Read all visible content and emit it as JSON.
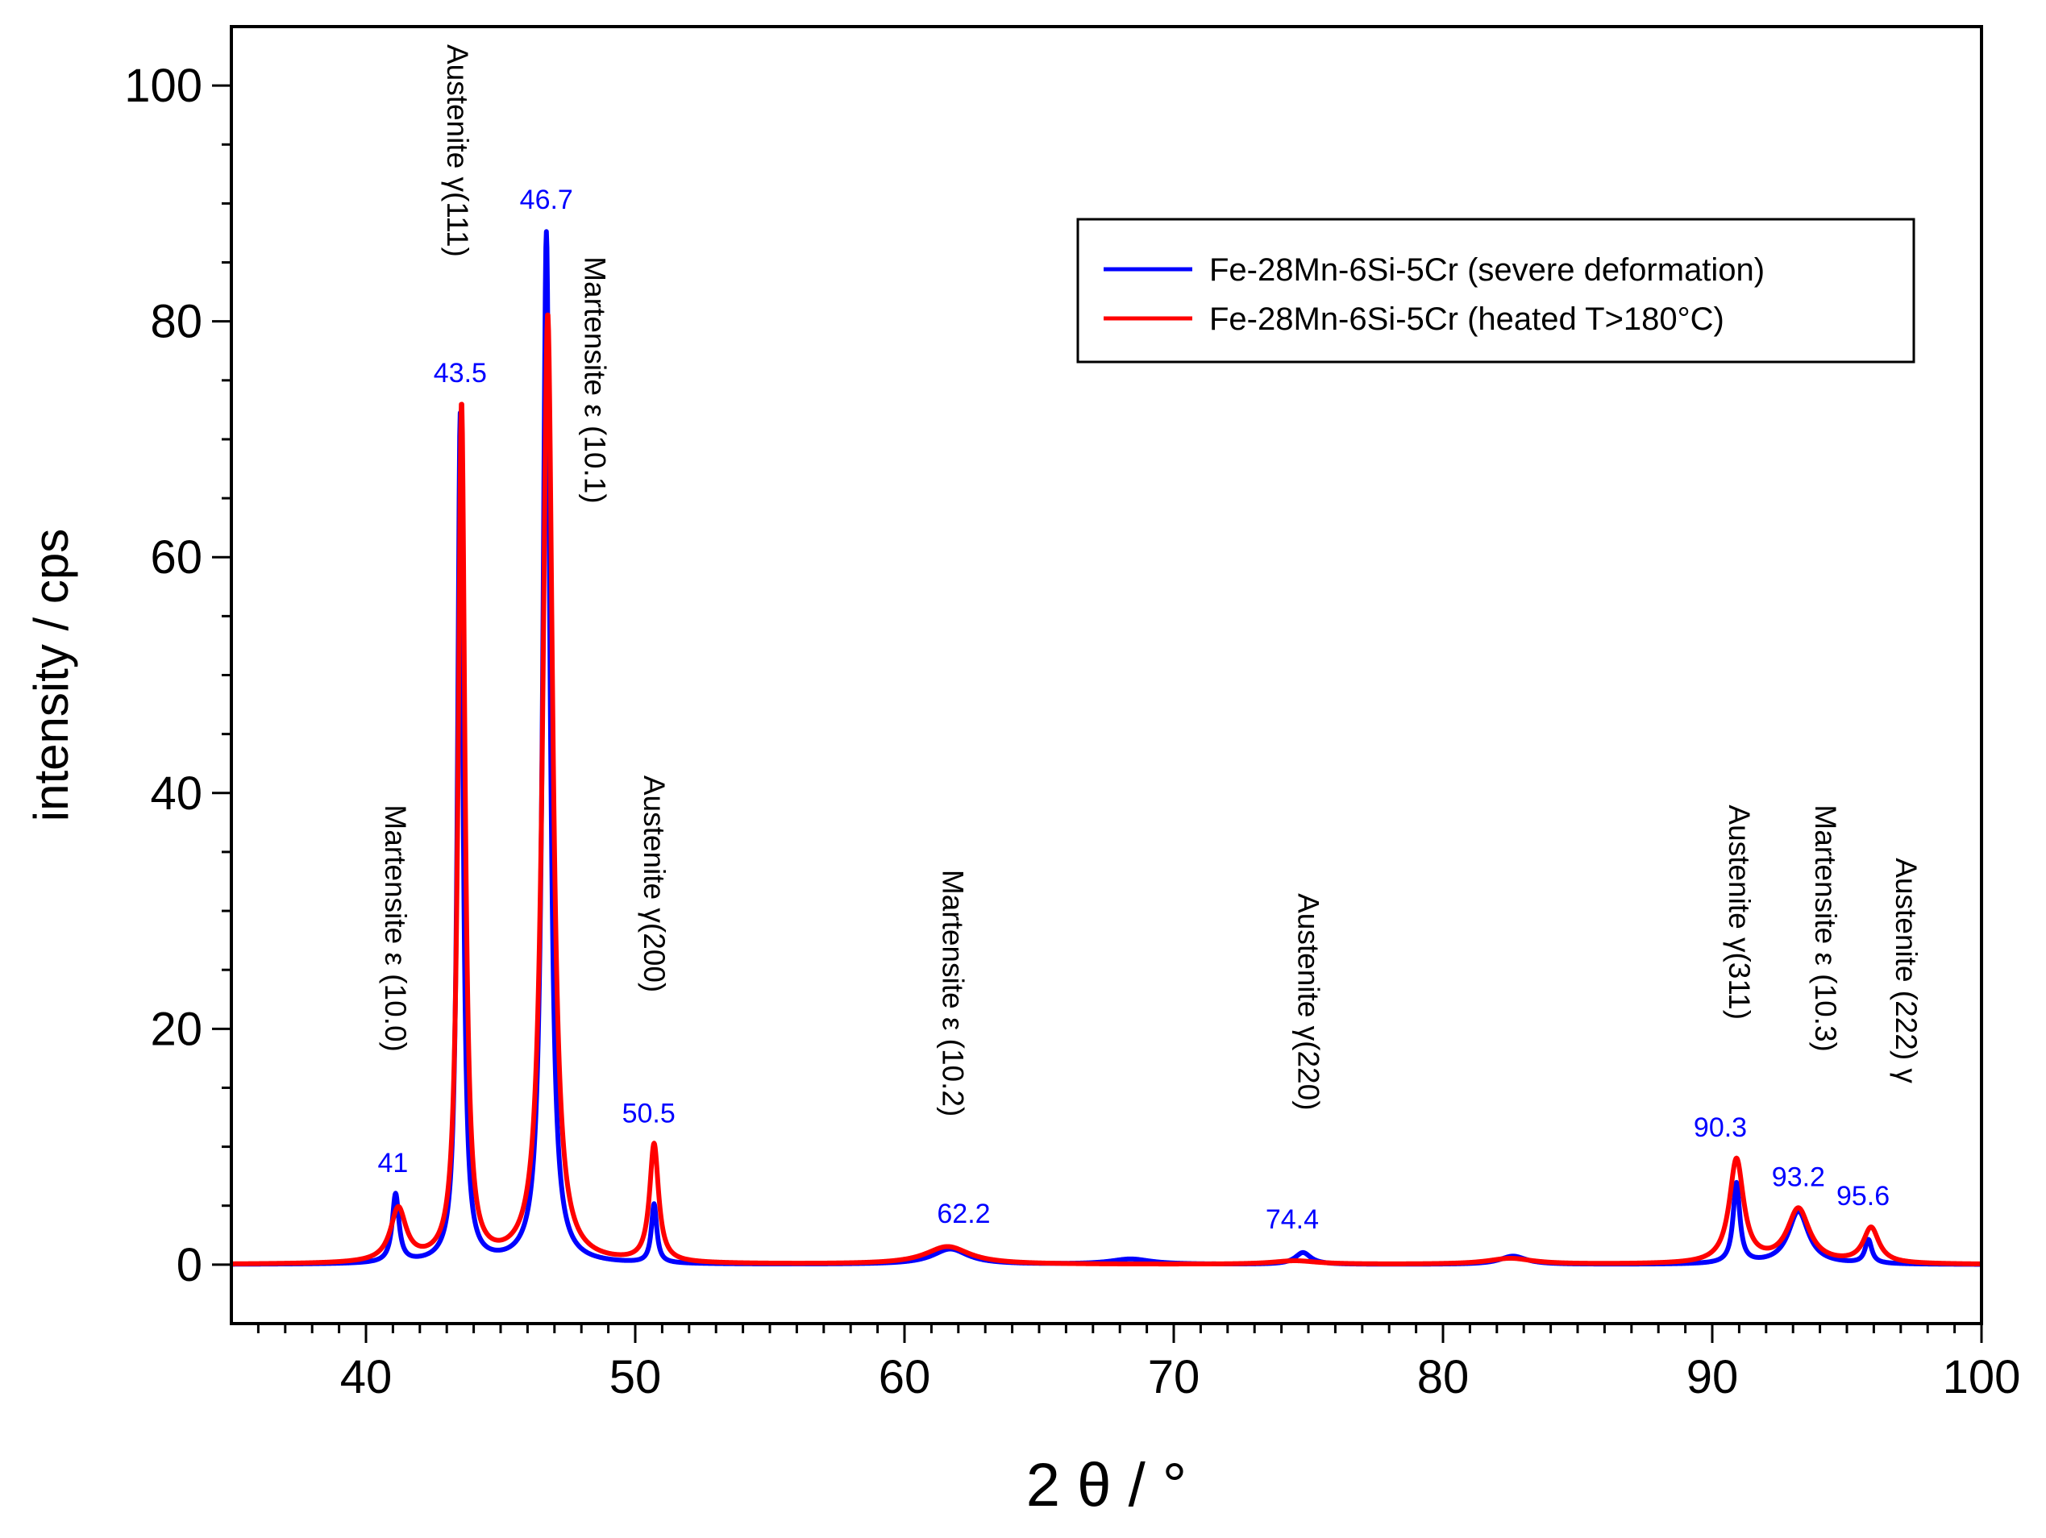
{
  "chart_data": {
    "type": "line",
    "title": "",
    "xlabel": "2 θ / °",
    "ylabel": "intensity / cps",
    "xlim": [
      35,
      100
    ],
    "ylim": [
      -5,
      105
    ],
    "x_ticks": [
      40,
      50,
      60,
      70,
      80,
      90,
      100
    ],
    "y_ticks": [
      0,
      20,
      40,
      60,
      80,
      100
    ],
    "grid": false,
    "legend_position": "top-right",
    "series": [
      {
        "name": "Fe-28Mn-6Si-5Cr (severe deformation)",
        "color": "#0000ff",
        "baseline": 0,
        "peaks": [
          {
            "center": 41.1,
            "height": 5.8,
            "width": 0.15
          },
          {
            "center": 43.5,
            "height": 72.0,
            "width": 0.12
          },
          {
            "center": 46.7,
            "height": 87.5,
            "width": 0.16
          },
          {
            "center": 50.7,
            "height": 5.0,
            "width": 0.12
          },
          {
            "center": 61.7,
            "height": 1.3,
            "width": 0.8
          },
          {
            "center": 68.4,
            "height": 0.45,
            "width": 0.9
          },
          {
            "center": 74.8,
            "height": 1.0,
            "width": 0.35
          },
          {
            "center": 82.6,
            "height": 0.7,
            "width": 0.6
          },
          {
            "center": 90.9,
            "height": 6.8,
            "width": 0.15
          },
          {
            "center": 93.2,
            "height": 4.5,
            "width": 0.45
          },
          {
            "center": 95.8,
            "height": 2.0,
            "width": 0.15
          }
        ]
      },
      {
        "name": "Fe-28Mn-6Si-5Cr (heated T>180°C)",
        "color": "#ff0000",
        "baseline": 0,
        "peaks": [
          {
            "center": 41.2,
            "height": 4.5,
            "width": 0.35
          },
          {
            "center": 43.55,
            "height": 72.8,
            "width": 0.15
          },
          {
            "center": 46.75,
            "height": 80.5,
            "width": 0.22
          },
          {
            "center": 50.7,
            "height": 10.0,
            "width": 0.2
          },
          {
            "center": 61.6,
            "height": 1.5,
            "width": 1.0
          },
          {
            "center": 74.5,
            "height": 0.3,
            "width": 1.0
          },
          {
            "center": 82.5,
            "height": 0.5,
            "width": 1.0
          },
          {
            "center": 90.9,
            "height": 8.8,
            "width": 0.32
          },
          {
            "center": 93.2,
            "height": 4.6,
            "width": 0.5
          },
          {
            "center": 95.9,
            "height": 3.0,
            "width": 0.35
          }
        ]
      }
    ],
    "peak_labels": [
      {
        "x": 41.0,
        "y": 5.8,
        "text": "41"
      },
      {
        "x": 43.5,
        "y": 72.8,
        "text": "43.5"
      },
      {
        "x": 46.7,
        "y": 87.5,
        "text": "46.7"
      },
      {
        "x": 50.5,
        "y": 10.0,
        "text": "50.5"
      },
      {
        "x": 62.2,
        "y": 1.5,
        "text": "62.2"
      },
      {
        "x": 74.4,
        "y": 1.0,
        "text": "74.4"
      },
      {
        "x": 90.3,
        "y": 8.8,
        "text": "90.3"
      },
      {
        "x": 93.2,
        "y": 4.6,
        "text": "93.2"
      },
      {
        "x": 95.6,
        "y": 3.0,
        "text": "95.6"
      }
    ],
    "phase_annotations": [
      {
        "x": 41.1,
        "y": 39.0,
        "text": "Martensite ε (10.0)"
      },
      {
        "x": 43.4,
        "y": 103.5,
        "text": "Austenite  γ(111)"
      },
      {
        "x": 48.5,
        "y": 85.5,
        "text": "Martensite ε (10.1)"
      },
      {
        "x": 50.7,
        "y": 41.5,
        "text": "Austenite  γ(200)"
      },
      {
        "x": 61.8,
        "y": 33.5,
        "text": "Martensite ε (10.2)"
      },
      {
        "x": 75.0,
        "y": 31.5,
        "text": "Austenite  γ(220)"
      },
      {
        "x": 91.0,
        "y": 39.0,
        "text": "Austenite  γ(311)"
      },
      {
        "x": 94.2,
        "y": 39.0,
        "text": "Martensite ε (10.3)"
      },
      {
        "x": 97.2,
        "y": 34.5,
        "text": "Austenite (222)  γ"
      }
    ]
  }
}
